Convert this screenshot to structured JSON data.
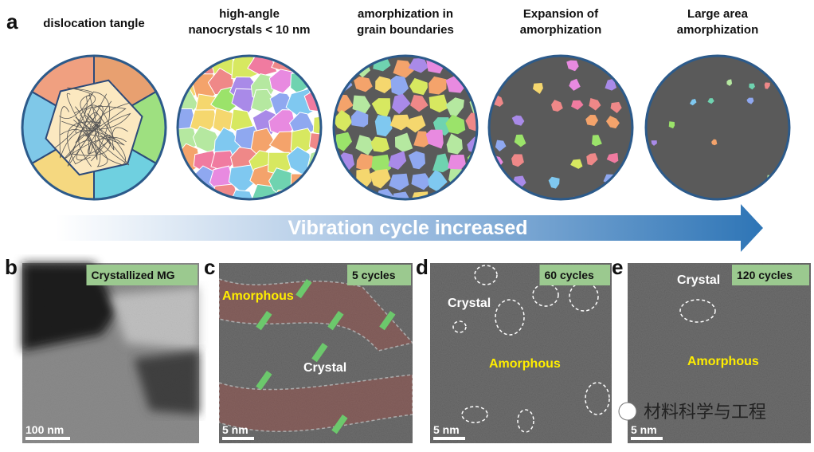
{
  "panel_a": {
    "label": "a",
    "stages": [
      {
        "title": [
          "dislocation tangle"
        ]
      },
      {
        "title": [
          "high-angle",
          "nanocrystals < 10 nm"
        ]
      },
      {
        "title": [
          "amorphization in",
          "grain boundaries"
        ]
      },
      {
        "title": [
          "Expansion of",
          "amorphization"
        ]
      },
      {
        "title": [
          "Large area",
          "amorphization"
        ]
      }
    ],
    "arrow_text": "Vibration cycle increased"
  },
  "panels": [
    {
      "label": "b",
      "tag": "Crystallized MG",
      "scale_bar": "100 nm"
    },
    {
      "label": "c",
      "tag": "5 cycles",
      "scale_bar": "5 nm",
      "amorphous": "Amorphous",
      "crystal": "Crystal"
    },
    {
      "label": "d",
      "tag": "60 cycles",
      "scale_bar": "5 nm",
      "amorphous": "Amorphous",
      "crystal": "Crystal"
    },
    {
      "label": "e",
      "tag": "120 cycles",
      "scale_bar": "5 nm",
      "amorphous": "Amorphous",
      "crystal": "Crystal"
    }
  ],
  "watermark": "材料科学与工程"
}
